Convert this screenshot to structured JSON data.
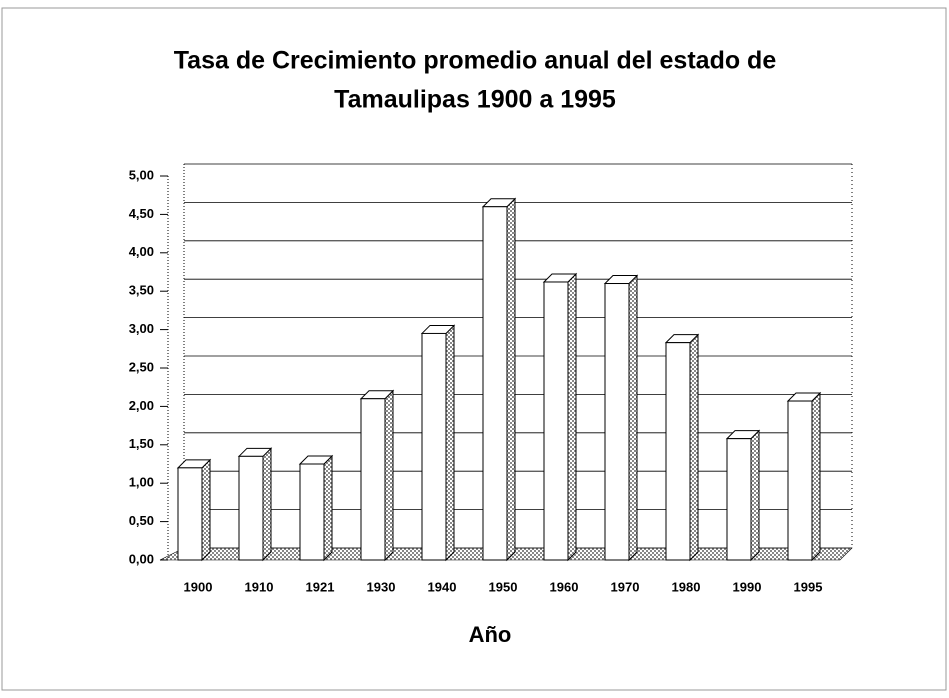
{
  "chart_data": {
    "type": "bar",
    "title": [
      "Tasa de Crecimiento promedio anual del estado de",
      "Tamaulipas 1900  a  1995"
    ],
    "x_label": "Año",
    "categories": [
      "1900",
      "1910",
      "1921",
      "1930",
      "1940",
      "1950",
      "1960",
      "1970",
      "1980",
      "1990",
      "1995"
    ],
    "values": [
      1.2,
      1.35,
      1.25,
      2.1,
      2.95,
      4.6,
      3.62,
      3.6,
      2.83,
      1.58,
      2.07
    ],
    "color": "#ffffff",
    "ylim": [
      0,
      5
    ],
    "yticks": [
      {
        "value": 0,
        "label": "0,00"
      },
      {
        "value": 0.5,
        "label": "0,50"
      },
      {
        "value": 1,
        "label": "1,00"
      },
      {
        "value": 1.5,
        "label": "1,50"
      },
      {
        "value": 2,
        "label": "2,00"
      },
      {
        "value": 2.5,
        "label": "2,50"
      },
      {
        "value": 3,
        "label": "3,00"
      },
      {
        "value": 3.5,
        "label": "3,50"
      },
      {
        "value": 4,
        "label": "4,00"
      },
      {
        "value": 4.5,
        "label": "4,50"
      },
      {
        "value": 5,
        "label": "5,00"
      }
    ],
    "grid": true
  }
}
